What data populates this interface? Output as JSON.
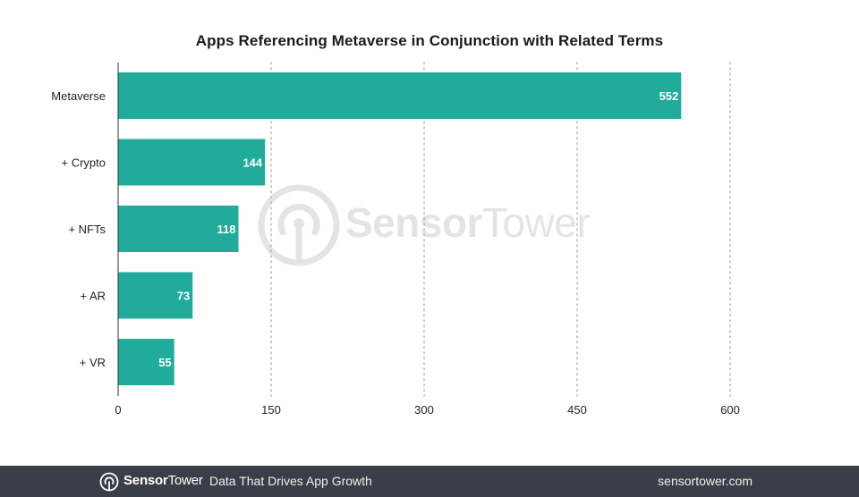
{
  "chart_data": {
    "type": "bar",
    "orientation": "horizontal",
    "title": "Apps Referencing Metaverse in Conjunction with Related Terms",
    "categories": [
      "Metaverse",
      "+ Crypto",
      "+ NFTs",
      "+ AR",
      "+ VR"
    ],
    "values": [
      552,
      144,
      118,
      73,
      55
    ],
    "xlim": [
      0,
      600
    ],
    "xticks": [
      "0",
      "150",
      "300",
      "450",
      "600"
    ],
    "xlabel": "",
    "ylabel": "",
    "grid": "vertical dotted",
    "bar_color": "#20ab9b"
  },
  "watermark": {
    "text_bold": "Sensor",
    "text_regular": "Tower"
  },
  "footer": {
    "brand_bold": "Sensor",
    "brand_regular": "Tower",
    "tagline": "Data That Drives App Growth",
    "site": "sensortower.com",
    "background": "#3a3e48"
  }
}
